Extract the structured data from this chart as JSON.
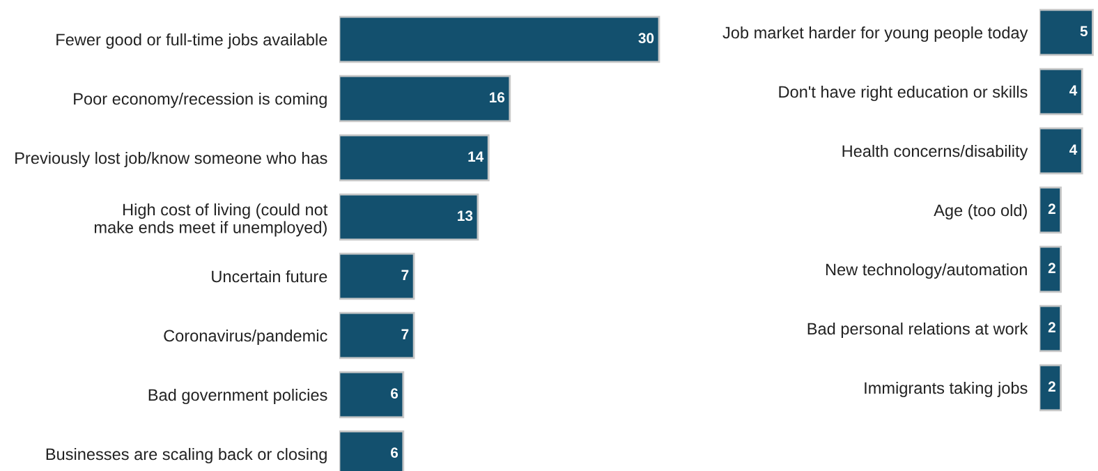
{
  "chart_data": [
    {
      "type": "bar",
      "orientation": "horizontal",
      "data_labels": true,
      "color": "#13506e",
      "categories": [
        "Fewer good or full-time jobs available",
        "Poor economy/recession is coming",
        "Previously lost job/know someone who has",
        "High cost of living (could not\nmake ends meet if unemployed)",
        "Uncertain future",
        "Coronavirus/pandemic",
        "Bad government policies",
        "Businesses are scaling back or closing"
      ],
      "values": [
        30,
        16,
        14,
        13,
        7,
        7,
        6,
        6
      ]
    },
    {
      "type": "bar",
      "orientation": "horizontal",
      "data_labels": true,
      "color": "#13506e",
      "categories": [
        "Job market harder for young people today",
        "Don't have right education or skills",
        "Health concerns/disability",
        "Age (too old)",
        "New technology/automation",
        "Bad personal relations at work",
        "Immigrants taking jobs"
      ],
      "values": [
        5,
        4,
        4,
        2,
        2,
        2,
        2
      ]
    }
  ]
}
